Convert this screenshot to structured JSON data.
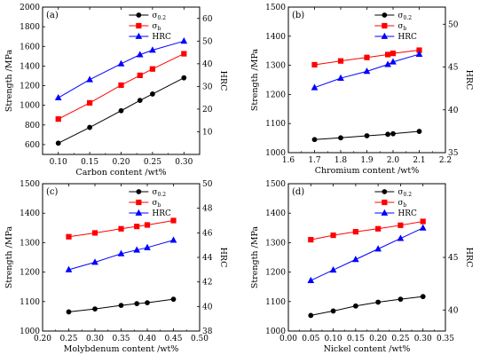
{
  "chart_data": [
    {
      "type": "line",
      "panel_label": "(a)",
      "xlabel": "Carbon content /wt%",
      "ylabel_left": "Strength /MPa",
      "ylabel_right": "HRC",
      "xlim": [
        0.075,
        0.325
      ],
      "xticks": [
        0.1,
        0.15,
        0.2,
        0.25,
        0.3
      ],
      "xtick_labels": [
        "0.10",
        "0.15",
        "0.20",
        "0.25",
        "0.30"
      ],
      "ylim_left": [
        500,
        2000
      ],
      "yticks_left": [
        600,
        800,
        1000,
        1200,
        1400,
        1600,
        1800,
        2000
      ],
      "ylim_right": [
        0,
        65
      ],
      "yticks_right": [
        10,
        20,
        30,
        40,
        50,
        60
      ],
      "legend_position": "top-right",
      "x": [
        0.1,
        0.15,
        0.2,
        0.23,
        0.25,
        0.3
      ],
      "series": [
        {
          "name": "σ",
          "sub": "0.2",
          "axis": "left",
          "marker": "circle",
          "color": "#000000",
          "values": [
            615,
            775,
            945,
            1050,
            1115,
            1280
          ]
        },
        {
          "name": "σ",
          "sub": "b",
          "axis": "left",
          "marker": "square",
          "color": "#ff0000",
          "values": [
            860,
            1025,
            1205,
            1305,
            1370,
            1525
          ]
        },
        {
          "name": "HRC",
          "sub": "",
          "axis": "right",
          "marker": "triangle",
          "color": "#0000ff",
          "values": [
            25,
            33,
            40,
            44,
            46,
            50
          ]
        }
      ]
    },
    {
      "type": "line",
      "panel_label": "(b)",
      "xlabel": "Chromium content /wt%",
      "ylabel_left": "Strength /MPa",
      "ylabel_right": "HRC",
      "xlim": [
        1.6,
        2.2
      ],
      "xticks": [
        1.6,
        1.7,
        1.8,
        1.9,
        2.0,
        2.1,
        2.2
      ],
      "xtick_labels": [
        "1.6",
        "1.7",
        "1.8",
        "1.9",
        "2.0",
        "2.1",
        "2.2"
      ],
      "ylim_left": [
        1000,
        1500
      ],
      "yticks_left": [
        1000,
        1100,
        1200,
        1300,
        1400,
        1500
      ],
      "ylim_right": [
        35,
        52
      ],
      "yticks_right": [
        35,
        40,
        45,
        50
      ],
      "legend_position": "top-right",
      "x": [
        1.7,
        1.8,
        1.9,
        1.98,
        2.0,
        2.1
      ],
      "series": [
        {
          "name": "σ",
          "sub": "0.2",
          "axis": "left",
          "marker": "circle",
          "color": "#000000",
          "values": [
            1045,
            1051,
            1058,
            1063,
            1065,
            1073
          ]
        },
        {
          "name": "σ",
          "sub": "b",
          "axis": "left",
          "marker": "square",
          "color": "#ff0000",
          "values": [
            1302,
            1315,
            1327,
            1337,
            1341,
            1352
          ]
        },
        {
          "name": "HRC",
          "sub": "",
          "axis": "right",
          "marker": "triangle",
          "color": "#0000ff",
          "values": [
            42.6,
            43.7,
            44.5,
            45.3,
            45.6,
            46.5
          ]
        }
      ]
    },
    {
      "type": "line",
      "panel_label": "(c)",
      "xlabel": "Molybdenum content /wt%",
      "ylabel_left": "Strength /MPa",
      "ylabel_right": "HRC",
      "xlim": [
        0.2,
        0.5
      ],
      "xticks": [
        0.2,
        0.25,
        0.3,
        0.35,
        0.4,
        0.45,
        0.5
      ],
      "xtick_labels": [
        "0.20",
        "0.25",
        "0.30",
        "0.35",
        "0.40",
        "0.45",
        "0.50"
      ],
      "ylim_left": [
        1000,
        1500
      ],
      "yticks_left": [
        1000,
        1100,
        1200,
        1300,
        1400,
        1500
      ],
      "ylim_right": [
        38,
        50
      ],
      "yticks_right": [
        38,
        40,
        42,
        44,
        46,
        48,
        50
      ],
      "legend_position": "top-right",
      "x": [
        0.25,
        0.3,
        0.35,
        0.38,
        0.4,
        0.45
      ],
      "series": [
        {
          "name": "σ",
          "sub": "0.2",
          "axis": "left",
          "marker": "circle",
          "color": "#000000",
          "values": [
            1065,
            1075,
            1087,
            1093,
            1096,
            1108
          ]
        },
        {
          "name": "σ",
          "sub": "b",
          "axis": "left",
          "marker": "square",
          "color": "#ff0000",
          "values": [
            1320,
            1333,
            1347,
            1355,
            1360,
            1375
          ]
        },
        {
          "name": "HRC",
          "sub": "",
          "axis": "right",
          "marker": "triangle",
          "color": "#0000ff",
          "values": [
            43.0,
            43.6,
            44.3,
            44.6,
            44.8,
            45.4
          ]
        }
      ]
    },
    {
      "type": "line",
      "panel_label": "(d)",
      "xlabel": "Nickel content /wt%",
      "ylabel_left": "Strength /MPa",
      "ylabel_right": "HRC",
      "xlim": [
        0.0,
        0.35
      ],
      "xticks": [
        0.0,
        0.05,
        0.1,
        0.15,
        0.2,
        0.25,
        0.3,
        0.35
      ],
      "xtick_labels": [
        "0.00",
        "0.05",
        "0.10",
        "0.15",
        "0.20",
        "0.25",
        "0.30",
        "0.35"
      ],
      "ylim_left": [
        1000,
        1500
      ],
      "yticks_left": [
        1000,
        1100,
        1200,
        1300,
        1400,
        1500
      ],
      "ylim_right": [
        38,
        52
      ],
      "yticks_right": [
        40,
        45
      ],
      "legend_position": "top-right",
      "x": [
        0.05,
        0.1,
        0.15,
        0.2,
        0.25,
        0.3
      ],
      "series": [
        {
          "name": "σ",
          "sub": "0.2",
          "axis": "left",
          "marker": "circle",
          "color": "#000000",
          "values": [
            1053,
            1068,
            1085,
            1098,
            1108,
            1117
          ]
        },
        {
          "name": "σ",
          "sub": "b",
          "axis": "left",
          "marker": "square",
          "color": "#ff0000",
          "values": [
            1310,
            1325,
            1337,
            1347,
            1359,
            1372
          ]
        },
        {
          "name": "HRC",
          "sub": "",
          "axis": "right",
          "marker": "triangle",
          "color": "#0000ff",
          "values": [
            42.8,
            43.8,
            44.8,
            45.8,
            46.8,
            47.8
          ]
        }
      ]
    }
  ]
}
